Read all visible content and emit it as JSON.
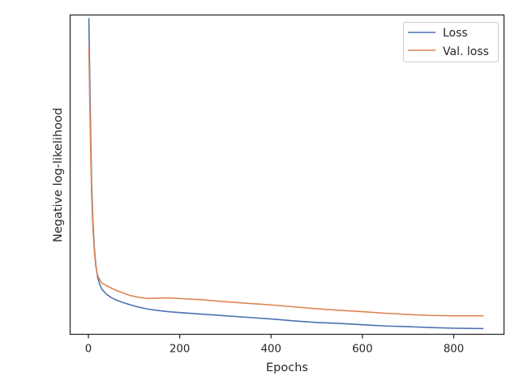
{
  "chart_data": {
    "type": "line",
    "title": "",
    "xlabel": "Epochs",
    "ylabel": "Negative log-likelihood",
    "xlim": [
      -40,
      910
    ],
    "ylim": [
      0.0,
      1.0
    ],
    "y_tick_labels_shown": false,
    "x_ticks": [
      0,
      200,
      400,
      600,
      800
    ],
    "x_tick_labels": [
      "0",
      "200",
      "400",
      "600",
      "800"
    ],
    "grid": false,
    "legend_position": "top-right",
    "series": [
      {
        "name": "Loss",
        "color": "#4c72b0",
        "x": [
          1,
          3,
          5,
          7,
          10,
          13,
          16,
          20,
          25,
          30,
          40,
          50,
          60,
          75,
          90,
          110,
          130,
          150,
          175,
          200,
          250,
          300,
          350,
          400,
          450,
          500,
          550,
          600,
          650,
          700,
          750,
          800,
          865
        ],
        "values": [
          0.99,
          0.8,
          0.62,
          0.47,
          0.35,
          0.27,
          0.22,
          0.18,
          0.155,
          0.14,
          0.125,
          0.115,
          0.108,
          0.1,
          0.093,
          0.085,
          0.079,
          0.075,
          0.071,
          0.068,
          0.063,
          0.058,
          0.053,
          0.048,
          0.042,
          0.037,
          0.034,
          0.03,
          0.026,
          0.024,
          0.021,
          0.019,
          0.018
        ]
      },
      {
        "name": "Val. loss",
        "color": "#dd8452",
        "x": [
          1,
          3,
          5,
          7,
          10,
          13,
          16,
          20,
          25,
          30,
          40,
          50,
          60,
          75,
          90,
          110,
          130,
          150,
          175,
          200,
          250,
          300,
          350,
          400,
          450,
          500,
          550,
          600,
          650,
          700,
          750,
          800,
          865
        ],
        "values": [
          0.9,
          0.72,
          0.57,
          0.44,
          0.33,
          0.26,
          0.215,
          0.185,
          0.17,
          0.16,
          0.152,
          0.145,
          0.138,
          0.13,
          0.122,
          0.116,
          0.112,
          0.113,
          0.114,
          0.112,
          0.108,
          0.102,
          0.097,
          0.092,
          0.086,
          0.08,
          0.075,
          0.071,
          0.066,
          0.062,
          0.059,
          0.058,
          0.058
        ]
      }
    ]
  }
}
